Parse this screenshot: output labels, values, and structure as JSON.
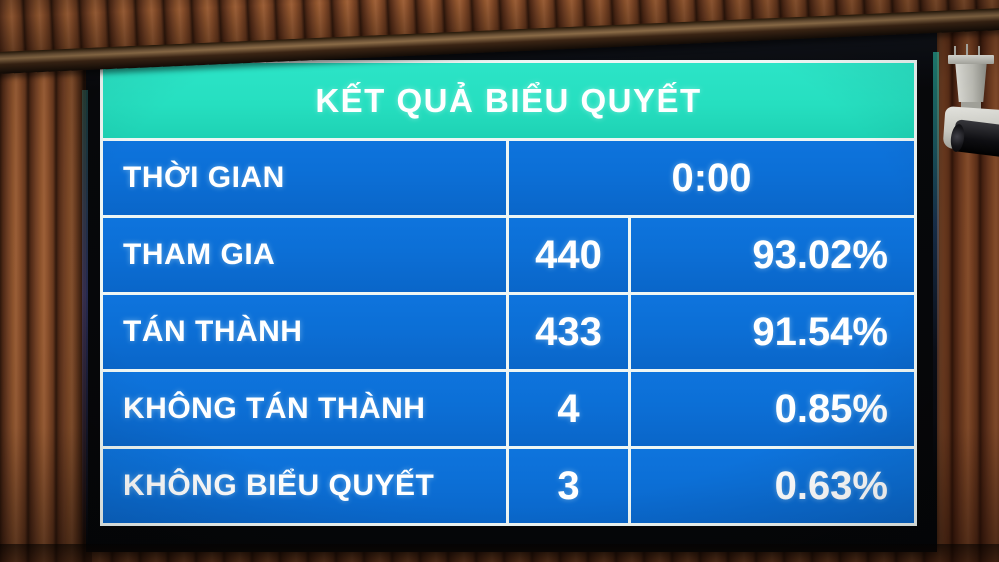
{
  "board": {
    "title": "KẾT QUẢ BIỂU QUYẾT",
    "rows": [
      {
        "label": "THỜI GIAN",
        "value": "0:00"
      },
      {
        "label": "THAM GIA",
        "count": "440",
        "percent": "93.02%"
      },
      {
        "label": "TÁN THÀNH",
        "count": "433",
        "percent": "91.54%"
      },
      {
        "label": "KHÔNG TÁN THÀNH",
        "count": "4",
        "percent": "0.85%"
      },
      {
        "label": "KHÔNG BIỂU QUYẾT",
        "count": "3",
        "percent": "0.63%"
      }
    ],
    "colors": {
      "header_bg": "#26dfc0",
      "row_bg": "#0c6fd6",
      "grid_lines": "#eef6f4",
      "text": "#ffffff"
    }
  },
  "chart_data": {
    "type": "table",
    "title": "KẾT QUẢ BIỂU QUYẾT",
    "columns": [
      "label",
      "count",
      "percent"
    ],
    "rows": [
      [
        "THỜI GIAN",
        "0:00",
        ""
      ],
      [
        "THAM GIA",
        "440",
        "93.02%"
      ],
      [
        "TÁN THÀNH",
        "433",
        "91.54%"
      ],
      [
        "KHÔNG TÁN THÀNH",
        "4",
        "0.85%"
      ],
      [
        "KHÔNG BIỂU QUYẾT",
        "3",
        "0.63%"
      ]
    ]
  },
  "scene": {
    "wall": "wood-slat-wall",
    "camera": "surveillance-camera"
  }
}
